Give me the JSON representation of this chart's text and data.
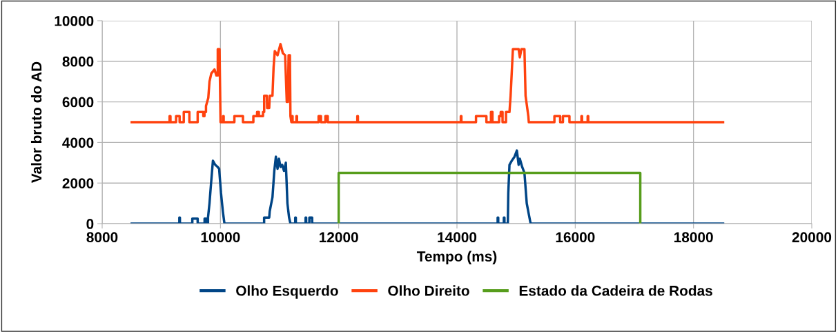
{
  "chart_data": {
    "type": "line",
    "xlabel": "Tempo (ms)",
    "ylabel": "Valor bruto do AD",
    "xlim": [
      8000,
      20000
    ],
    "xticks": [
      8000,
      10000,
      12000,
      14000,
      16000,
      18000,
      20000
    ],
    "ylim": [
      0,
      10000
    ],
    "yticks": [
      0,
      2000,
      4000,
      6000,
      8000,
      10000
    ],
    "grid": true,
    "legend": "bottom",
    "marker": "none",
    "line_style": "solid",
    "series": [
      {
        "name": "Olho Esquerdo",
        "color": "#004586",
        "x": [
          8500,
          9305,
          9305,
          9315,
          9315,
          9525,
          9525,
          9615,
          9615,
          9732,
          9732,
          9760,
          9760,
          9790,
          9790,
          9815,
          9842,
          9873,
          9912,
          9951,
          9978,
          10010,
          10041,
          10068,
          10739,
          10739,
          10825,
          10833,
          10880,
          10911,
          10938,
          10966,
          10989,
          11016,
          11044,
          11075,
          11106,
          11133,
          11161,
          11184,
          11265,
          11265,
          11275,
          11275,
          11440,
          11440,
          11450,
          11450,
          11504,
          11504,
          11551,
          11551,
          14688,
          14688,
          14698,
          14698,
          14793,
          14793,
          14803,
          14803,
          14860,
          14868,
          14888,
          14927,
          14974,
          15013,
          15043,
          15063,
          15102,
          15141,
          15180,
          15219,
          15246,
          18500
        ],
        "values": [
          0,
          0,
          300,
          300,
          0,
          0,
          250,
          250,
          0,
          0,
          250,
          250,
          0,
          0,
          300,
          1000,
          2000,
          3100,
          2900,
          2800,
          2700,
          1500,
          600,
          0,
          0,
          300,
          300,
          600,
          1300,
          2600,
          3300,
          2700,
          3200,
          2800,
          2900,
          2600,
          3000,
          1000,
          300,
          0,
          0,
          300,
          300,
          0,
          0,
          300,
          300,
          0,
          0,
          300,
          300,
          0,
          0,
          300,
          300,
          0,
          0,
          300,
          300,
          0,
          0,
          1500,
          2900,
          3100,
          3300,
          3600,
          2900,
          3200,
          2800,
          2500,
          1000,
          400,
          0,
          0
        ]
      },
      {
        "name": "Olho Direito",
        "color": "#ff420e",
        "x": [
          8500,
          9140,
          9140,
          9155,
          9155,
          9250,
          9250,
          9310,
          9310,
          9380,
          9380,
          9475,
          9475,
          9615,
          9615,
          9710,
          9710,
          9730,
          9730,
          9756,
          9756,
          9795,
          9815,
          9846,
          9900,
          9932,
          9955,
          9955,
          9985,
          10002,
          10045,
          10045,
          10055,
          10055,
          10236,
          10236,
          10381,
          10381,
          10557,
          10557,
          10620,
          10620,
          10650,
          10650,
          10720,
          10720,
          10740,
          10740,
          10785,
          10790,
          10825,
          10833,
          10880,
          10899,
          10919,
          10966,
          11016,
          11055,
          11094,
          11122,
          11140,
          11153,
          11175,
          11184,
          11200,
          11210,
          11210,
          11220,
          11220,
          11285,
          11285,
          11295,
          11295,
          11660,
          11660,
          11700,
          11700,
          11775,
          11775,
          11815,
          11815,
          12315,
          12315,
          12325,
          12325,
          14065,
          14065,
          14075,
          14075,
          14322,
          14322,
          14498,
          14498,
          14575,
          14575,
          14600,
          14600,
          14713,
          14713,
          14740,
          14740,
          14771,
          14771,
          14829,
          14829,
          14888,
          14907,
          14946,
          15043,
          15063,
          15090,
          15141,
          15160,
          15207,
          15215,
          15648,
          15648,
          15745,
          15745,
          15792,
          15792,
          15902,
          15902,
          16105,
          16105,
          16115,
          16115,
          16210,
          16210,
          16220,
          16220,
          18500
        ],
        "values": [
          5000,
          5000,
          5300,
          5300,
          5000,
          5000,
          5300,
          5300,
          5000,
          5000,
          5500,
          5500,
          5000,
          5000,
          5500,
          5500,
          5300,
          5300,
          5500,
          5500,
          5800,
          6200,
          7000,
          7400,
          7600,
          7300,
          7300,
          8600,
          8600,
          5000,
          5000,
          5300,
          5300,
          5000,
          5000,
          5300,
          5300,
          5000,
          5000,
          5300,
          5300,
          5500,
          5500,
          5300,
          5300,
          5500,
          5500,
          6300,
          6300,
          5700,
          5700,
          6300,
          6300,
          7700,
          8500,
          8300,
          8850,
          8400,
          8300,
          6000,
          6000,
          8300,
          8300,
          5300,
          5000,
          5000,
          5300,
          5300,
          5000,
          5000,
          5300,
          5300,
          5000,
          5000,
          5300,
          5300,
          5000,
          5000,
          5300,
          5300,
          5000,
          5000,
          5300,
          5300,
          5000,
          5000,
          5300,
          5300,
          5000,
          5000,
          5300,
          5300,
          5000,
          5000,
          5500,
          5500,
          5000,
          5000,
          5300,
          5300,
          5500,
          5500,
          5000,
          5000,
          5500,
          5500,
          6300,
          8600,
          8600,
          8200,
          8600,
          8600,
          6300,
          5300,
          5000,
          5000,
          5300,
          5300,
          5000,
          5000,
          5300,
          5300,
          5000,
          5000,
          5300,
          5300,
          5000,
          5000,
          5300,
          5300,
          5000,
          5000
        ]
      },
      {
        "name": "Estado da Cadeira de Rodas",
        "color": "#579d1c",
        "x": [
          12000,
          12000,
          17100,
          17100
        ],
        "values": [
          0,
          2500,
          2500,
          0
        ]
      }
    ]
  }
}
